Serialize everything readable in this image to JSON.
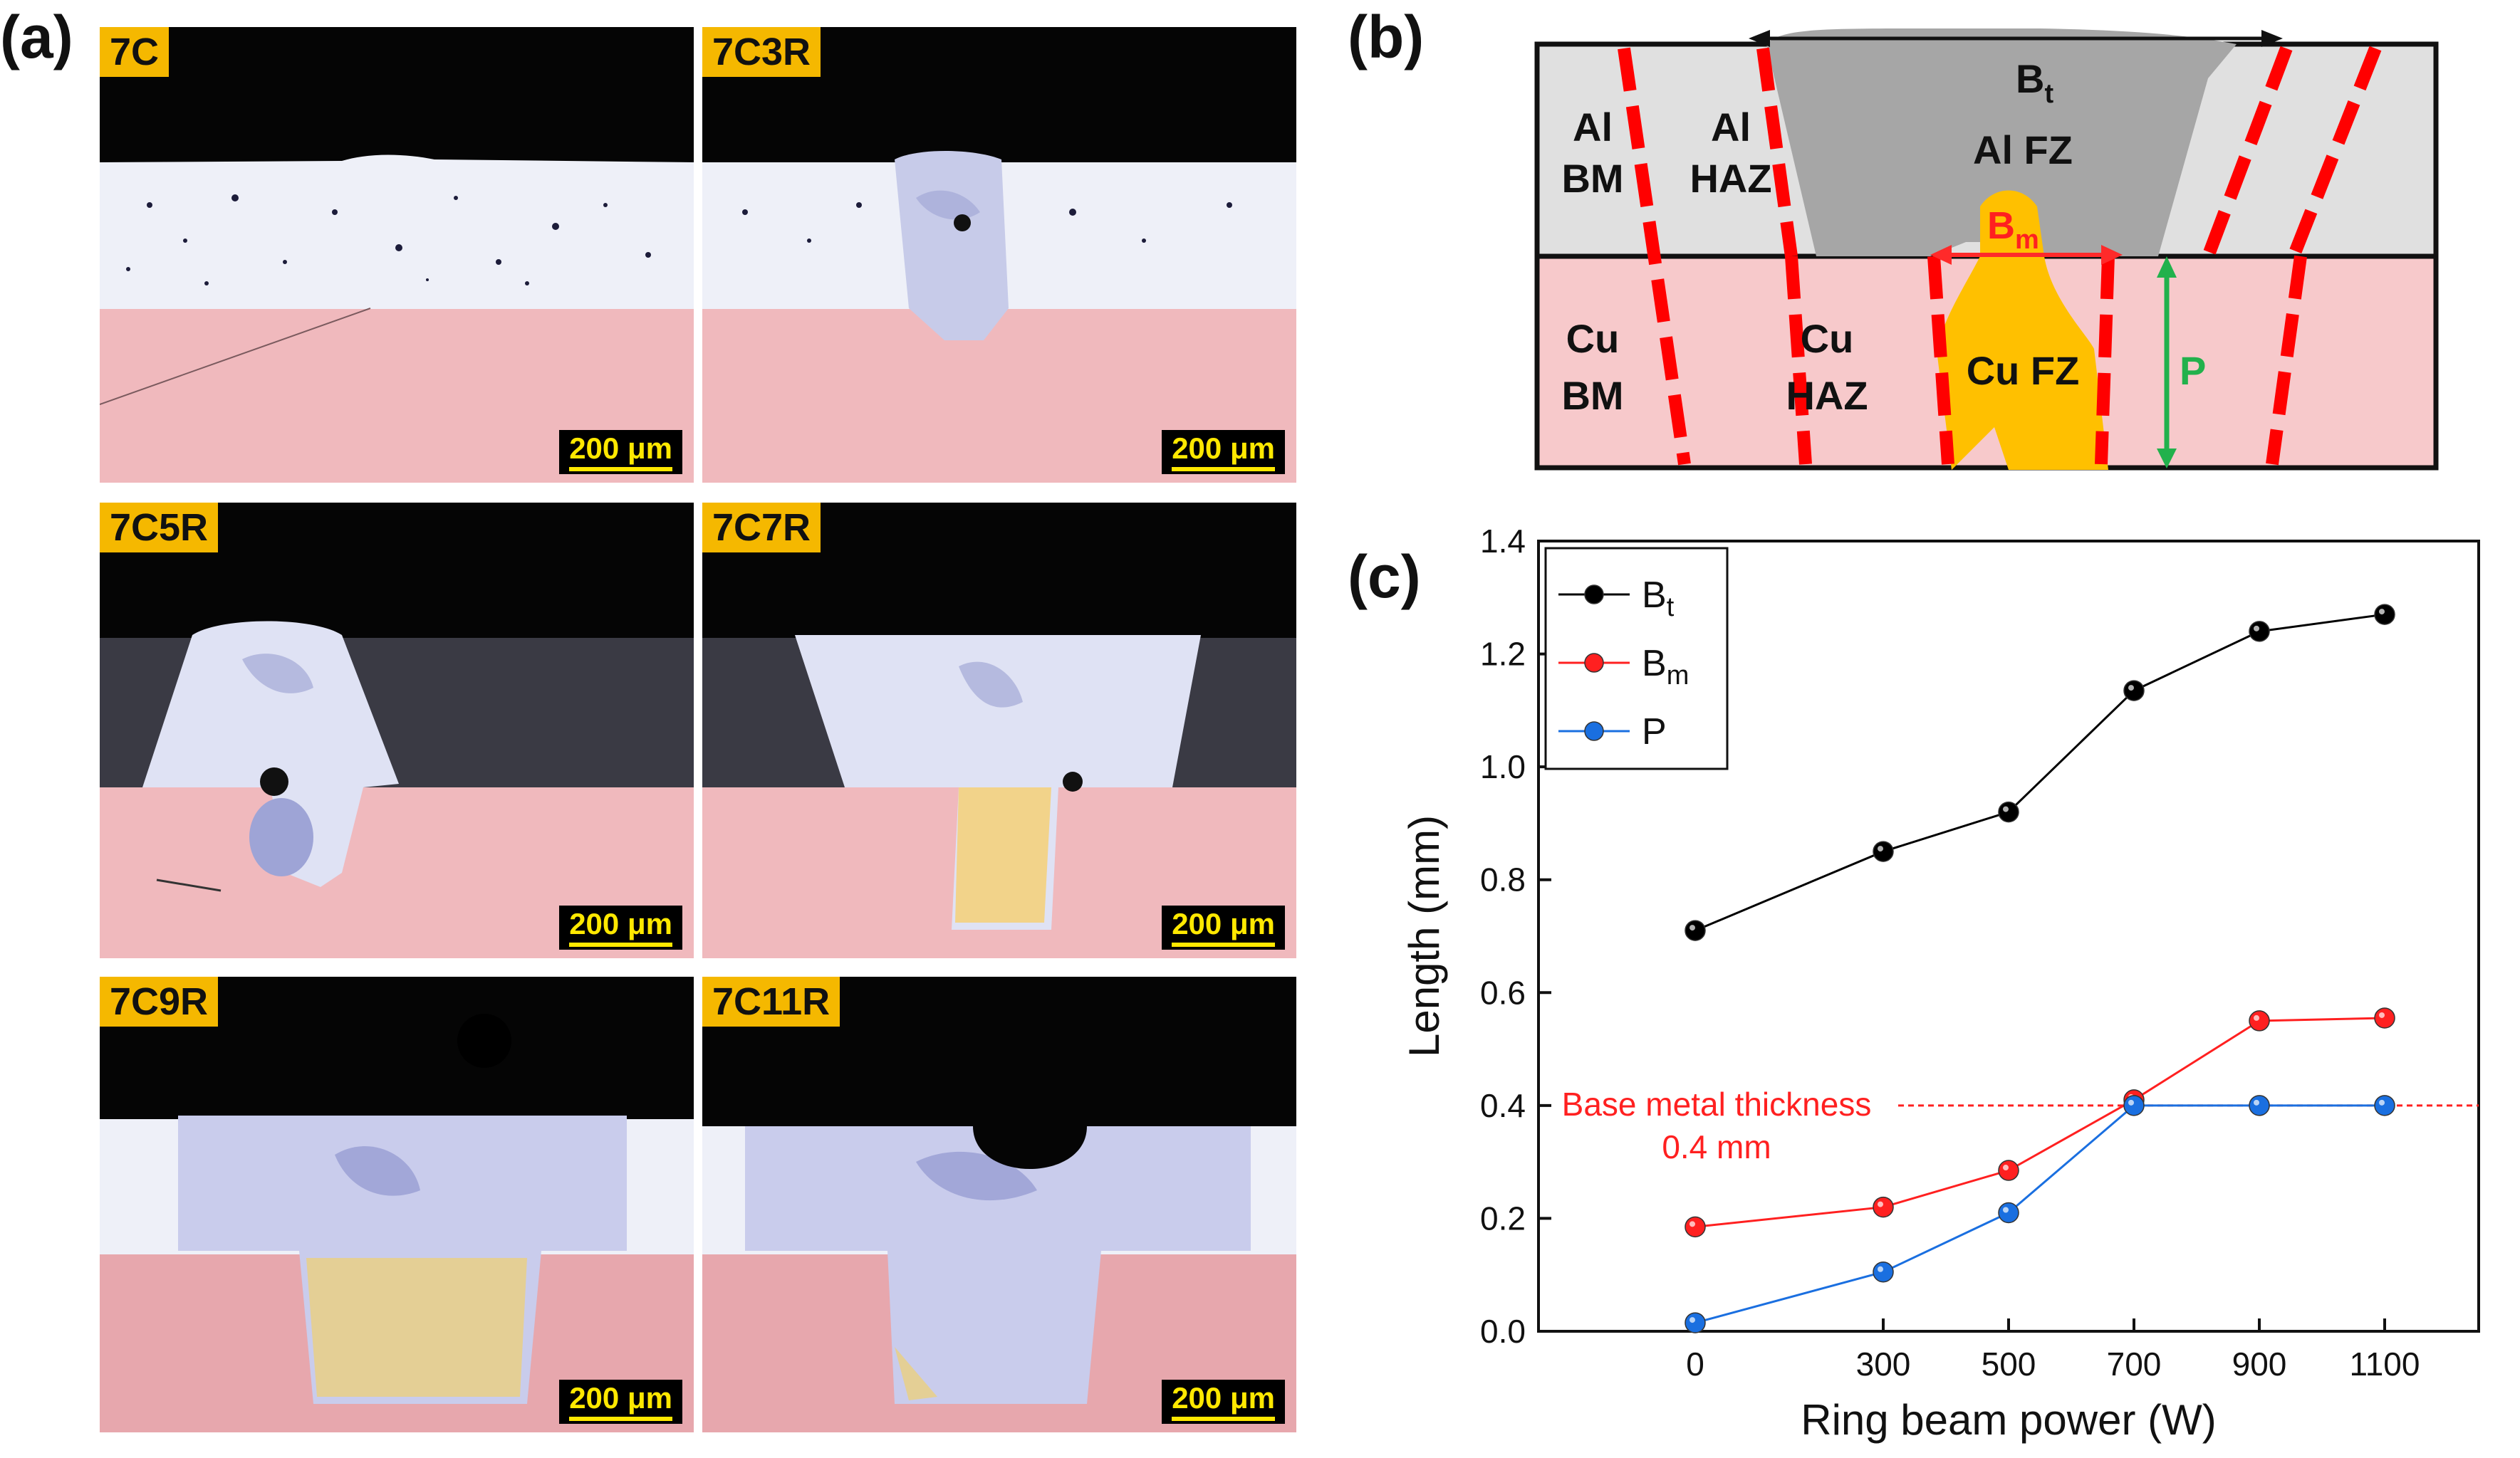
{
  "panels": {
    "a_label": "(a)",
    "b_label": "(b)",
    "c_label": "(c)"
  },
  "micrographs": [
    {
      "tag": "7C",
      "scale": "200 μm"
    },
    {
      "tag": "7C3R",
      "scale": "200 μm"
    },
    {
      "tag": "7C5R",
      "scale": "200 μm"
    },
    {
      "tag": "7C7R",
      "scale": "200 μm"
    },
    {
      "tag": "7C9R",
      "scale": "200 μm"
    },
    {
      "tag": "7C11R",
      "scale": "200 μm"
    }
  ],
  "schematic": {
    "al_bm_1": "Al",
    "al_bm_2": "BM",
    "al_haz_1": "Al",
    "al_haz_2": "HAZ",
    "al_fz": "Al FZ",
    "bt_main": "B",
    "bt_sub": "t",
    "bm_main": "B",
    "bm_sub": "m",
    "cu_bm_1": "Cu",
    "cu_bm_2": "BM",
    "cu_haz_1": "Cu",
    "cu_haz_2": "HAZ",
    "cu_fz": "Cu FZ",
    "p_label": "P"
  },
  "colors": {
    "al_region": "#e0e0e0",
    "cu_region": "#f7c9cb",
    "al_fz": "#a6a6a6",
    "cu_fz": "#ffc000",
    "dash": "#ff0000",
    "arrow_bm": "#ff0000",
    "arrow_p": "#22b14c",
    "series_bt": "#000000",
    "series_bm": "#ff2020",
    "series_p": "#1a6fe0"
  },
  "chart_data": {
    "type": "line",
    "xlabel": "Ring beam power (W)",
    "ylabel": "Length (mm)",
    "x": [
      0,
      300,
      500,
      700,
      900,
      1100
    ],
    "xticks": [
      "0",
      "300",
      "500",
      "700",
      "900",
      "1100"
    ],
    "yticks": [
      "0.0",
      "0.2",
      "0.4",
      "0.6",
      "0.8",
      "1.0",
      "1.2",
      "1.4"
    ],
    "ylim": [
      0,
      1.4
    ],
    "series": [
      {
        "name": "Bt",
        "name_main": "B",
        "name_sub": "t",
        "values": [
          0.71,
          0.85,
          0.92,
          1.135,
          1.24,
          1.27
        ]
      },
      {
        "name": "Bm",
        "name_main": "B",
        "name_sub": "m",
        "values": [
          0.185,
          0.22,
          0.285,
          0.41,
          0.55,
          0.555
        ]
      },
      {
        "name": "P",
        "name_main": "P",
        "name_sub": "",
        "values": [
          0.015,
          0.105,
          0.21,
          0.4,
          0.4,
          0.4
        ]
      }
    ],
    "reference_line": {
      "y": 0.4,
      "label_1": "Base metal thickness",
      "label_2": "0.4 mm"
    },
    "legend_position": "top-left"
  }
}
